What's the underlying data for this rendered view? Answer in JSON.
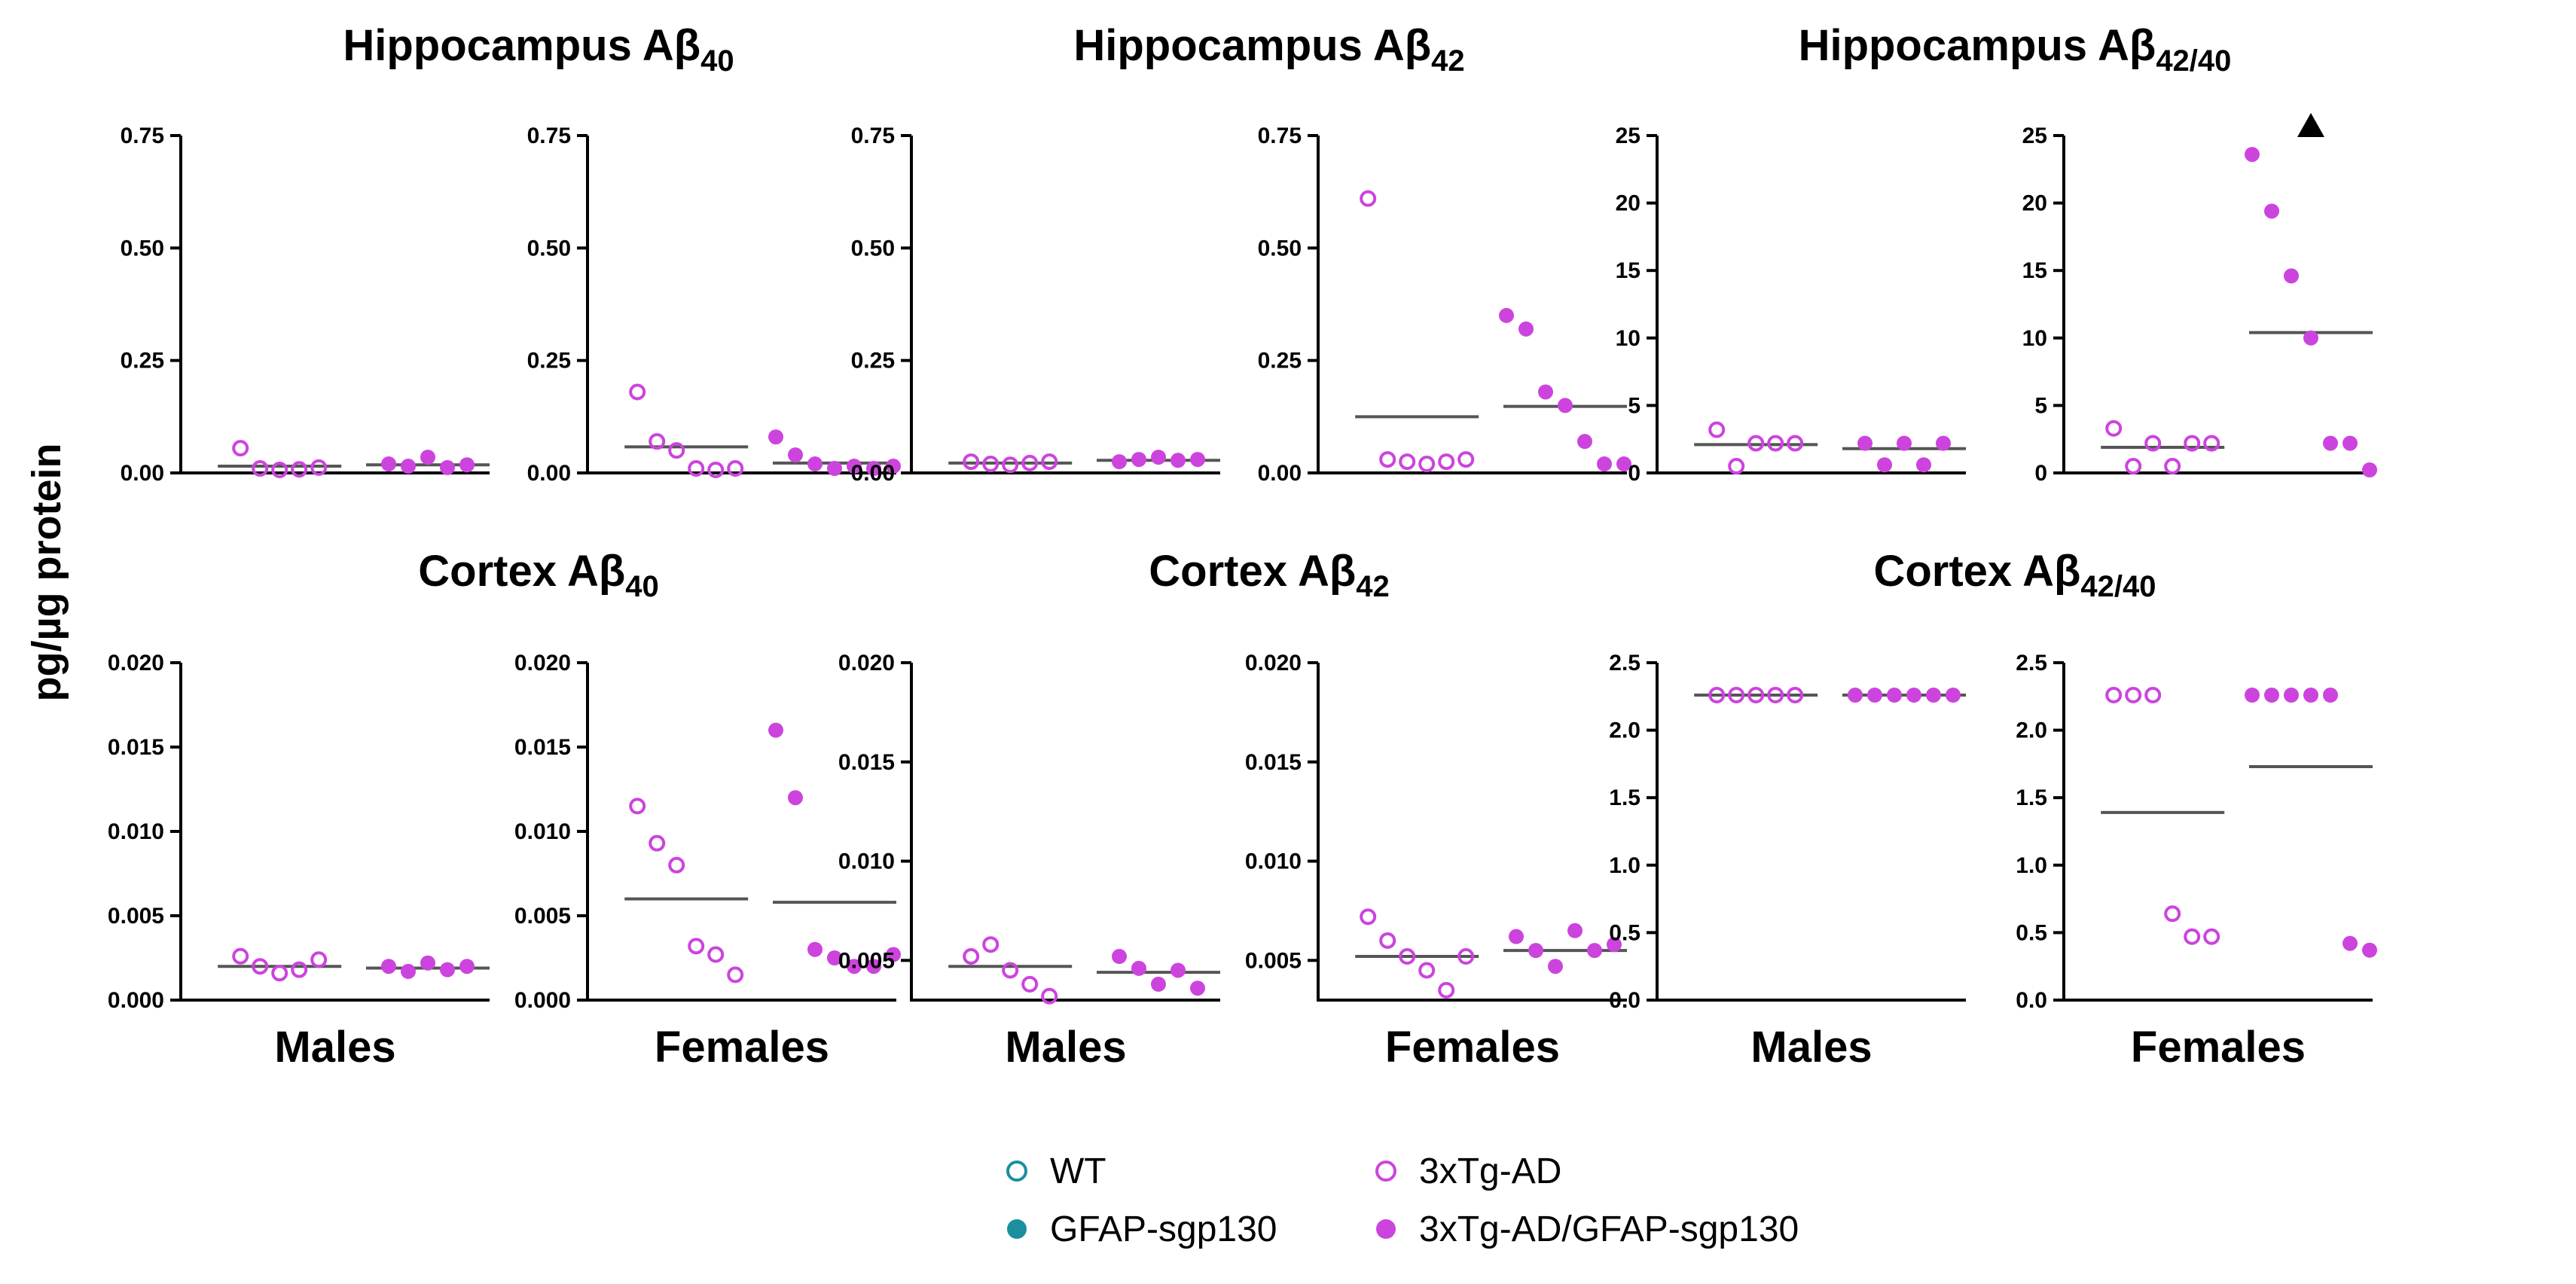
{
  "y_axis_label": "pg/µg protein",
  "x_group_labels": [
    "Males",
    "Females"
  ],
  "colors": {
    "wt": "#1a8f9e",
    "tg": "#cc44dd",
    "median": "#555555"
  },
  "legend": [
    {
      "label": "WT",
      "marker": "open",
      "color": "#1a8f9e"
    },
    {
      "label": "GFAP-sgp130",
      "marker": "filled",
      "color": "#1a8f9e"
    },
    {
      "label": "3xTg-AD",
      "marker": "open",
      "color": "#cc44dd"
    },
    {
      "label": "3xTg-AD/GFAP-sgp130",
      "marker": "filled",
      "color": "#cc44dd"
    }
  ],
  "chart_data": [
    {
      "type": "scatter",
      "title": {
        "prefix": "Hippocampus Aβ",
        "sub": "40"
      },
      "ylim": [
        0,
        0.75
      ],
      "yticks": [
        "0.00",
        "0.25",
        "0.50",
        "0.75"
      ],
      "panels": [
        {
          "xlabel": "Males",
          "groups": [
            {
              "series": "3xTg-AD",
              "filled": false,
              "median": 0.015,
              "values": [
                0.055,
                0.01,
                0.005,
                0.008,
                0.012
              ]
            },
            {
              "series": "3xTg-AD/GFAP-sgp130",
              "filled": true,
              "median": 0.018,
              "values": [
                0.02,
                0.015,
                0.035,
                0.012,
                0.018
              ]
            }
          ]
        },
        {
          "xlabel": "Females",
          "groups": [
            {
              "series": "3xTg-AD",
              "filled": false,
              "median": 0.058,
              "values": [
                0.18,
                0.07,
                0.05,
                0.01,
                0.005,
                0.01
              ]
            },
            {
              "series": "3xTg-AD/GFAP-sgp130",
              "filled": true,
              "median": 0.022,
              "values": [
                0.08,
                0.04,
                0.02,
                0.01,
                0.015,
                0.01,
                0.015
              ]
            }
          ]
        }
      ]
    },
    {
      "type": "scatter",
      "title": {
        "prefix": "Hippocampus Aβ",
        "sub": "42"
      },
      "ylim": [
        0,
        0.75
      ],
      "yticks": [
        "0.00",
        "0.25",
        "0.50",
        "0.75"
      ],
      "panels": [
        {
          "xlabel": "Males",
          "groups": [
            {
              "series": "3xTg-AD",
              "filled": false,
              "median": 0.022,
              "values": [
                0.025,
                0.02,
                0.018,
                0.022,
                0.025
              ]
            },
            {
              "series": "3xTg-AD/GFAP-sgp130",
              "filled": true,
              "median": 0.028,
              "values": [
                0.025,
                0.03,
                0.035,
                0.028,
                0.03
              ]
            }
          ]
        },
        {
          "xlabel": "Females",
          "groups": [
            {
              "series": "3xTg-AD",
              "filled": false,
              "median": 0.125,
              "values": [
                0.61,
                0.03,
                0.025,
                0.02,
                0.025,
                0.03
              ]
            },
            {
              "series": "3xTg-AD/GFAP-sgp130",
              "filled": true,
              "median": 0.148,
              "values": [
                0.35,
                0.32,
                0.18,
                0.15,
                0.07,
                0.02,
                0.02
              ]
            }
          ]
        }
      ]
    },
    {
      "type": "scatter",
      "title": {
        "prefix": "Hippocampus Aβ",
        "sub": "42/40"
      },
      "ylim": [
        0,
        25
      ],
      "yticks": [
        "0",
        "5",
        "10",
        "15",
        "20",
        "25"
      ],
      "panels": [
        {
          "xlabel": "Males",
          "groups": [
            {
              "series": "3xTg-AD",
              "filled": false,
              "median": 2.1,
              "values": [
                3.2,
                0.5,
                2.2,
                2.2,
                2.2
              ]
            },
            {
              "series": "3xTg-AD/GFAP-sgp130",
              "filled": true,
              "median": 1.8,
              "values": [
                2.2,
                0.6,
                2.2,
                0.6,
                2.2
              ]
            }
          ]
        },
        {
          "xlabel": "Females",
          "groups": [
            {
              "series": "3xTg-AD",
              "filled": false,
              "median": 1.9,
              "values": [
                3.3,
                0.5,
                2.2,
                0.5,
                2.2,
                2.2
              ]
            },
            {
              "series": "3xTg-AD/GFAP-sgp130",
              "filled": true,
              "median": 10.4,
              "values": [
                23.6,
                19.4,
                14.6,
                10.0,
                2.2,
                2.2,
                0.2
              ],
              "outlier_above": true
            }
          ]
        }
      ]
    },
    {
      "type": "scatter",
      "title": {
        "prefix": "Cortex Aβ",
        "sub": "40"
      },
      "ylim": [
        0,
        0.02
      ],
      "yticks": [
        "0.000",
        "0.005",
        "0.010",
        "0.015",
        "0.020"
      ],
      "panels": [
        {
          "xlabel": "Males",
          "groups": [
            {
              "series": "3xTg-AD",
              "filled": false,
              "median": 0.002,
              "values": [
                0.0026,
                0.002,
                0.0016,
                0.0018,
                0.0024
              ]
            },
            {
              "series": "3xTg-AD/GFAP-sgp130",
              "filled": true,
              "median": 0.0019,
              "values": [
                0.002,
                0.0017,
                0.0022,
                0.0018,
                0.002
              ]
            }
          ]
        },
        {
          "xlabel": "Females",
          "groups": [
            {
              "series": "3xTg-AD",
              "filled": false,
              "median": 0.006,
              "values": [
                0.0115,
                0.0093,
                0.008,
                0.0032,
                0.0027,
                0.0015
              ]
            },
            {
              "series": "3xTg-AD/GFAP-sgp130",
              "filled": true,
              "median": 0.0058,
              "values": [
                0.016,
                0.012,
                0.003,
                0.0025,
                0.002,
                0.002,
                0.0027
              ]
            }
          ]
        }
      ]
    },
    {
      "type": "scatter",
      "title": {
        "prefix": "Cortex Aβ",
        "sub": "42"
      },
      "ylim": [
        0.003,
        0.02
      ],
      "yticks": [
        "0.005",
        "0.010",
        "0.015",
        "0.020"
      ],
      "ytick_values": [
        0.005,
        0.01,
        0.015,
        0.02
      ],
      "panels": [
        {
          "xlabel": "Males",
          "groups": [
            {
              "series": "3xTg-AD",
              "filled": false,
              "median": 0.0047,
              "values": [
                0.0052,
                0.0058,
                0.0045,
                0.0038,
                0.0032
              ]
            },
            {
              "series": "3xTg-AD/GFAP-sgp130",
              "filled": true,
              "median": 0.0044,
              "values": [
                0.0052,
                0.0046,
                0.0038,
                0.0045,
                0.0036
              ]
            }
          ]
        },
        {
          "xlabel": "Females",
          "groups": [
            {
              "series": "3xTg-AD",
              "filled": false,
              "median": 0.0052,
              "values": [
                0.0072,
                0.006,
                0.0052,
                0.0045,
                0.0035,
                0.0052
              ]
            },
            {
              "series": "3xTg-AD/GFAP-sgp130",
              "filled": true,
              "median": 0.0055,
              "values": [
                0.0062,
                0.0055,
                0.0047,
                0.0065,
                0.0055,
                0.0058
              ]
            }
          ]
        }
      ]
    },
    {
      "type": "scatter",
      "title": {
        "prefix": "Cortex Aβ",
        "sub": "42/40"
      },
      "ylim": [
        0,
        2.5
      ],
      "yticks": [
        "0.0",
        "0.5",
        "1.0",
        "1.5",
        "2.0",
        "2.5"
      ],
      "panels": [
        {
          "xlabel": "Males",
          "groups": [
            {
              "series": "3xTg-AD",
              "filled": false,
              "median": 2.26,
              "values": [
                2.26,
                2.26,
                2.26,
                2.26,
                2.26
              ]
            },
            {
              "series": "3xTg-AD/GFAP-sgp130",
              "filled": true,
              "median": 2.26,
              "values": [
                2.26,
                2.26,
                2.26,
                2.26,
                2.26,
                2.26
              ]
            }
          ]
        },
        {
          "xlabel": "Females",
          "groups": [
            {
              "series": "3xTg-AD",
              "filled": false,
              "median": 1.39,
              "values": [
                2.26,
                2.26,
                2.26,
                0.64,
                0.47,
                0.47
              ]
            },
            {
              "series": "3xTg-AD/GFAP-sgp130",
              "filled": true,
              "median": 1.73,
              "values": [
                2.26,
                2.26,
                2.26,
                2.26,
                2.26,
                0.42,
                0.37
              ]
            }
          ]
        }
      ]
    }
  ]
}
